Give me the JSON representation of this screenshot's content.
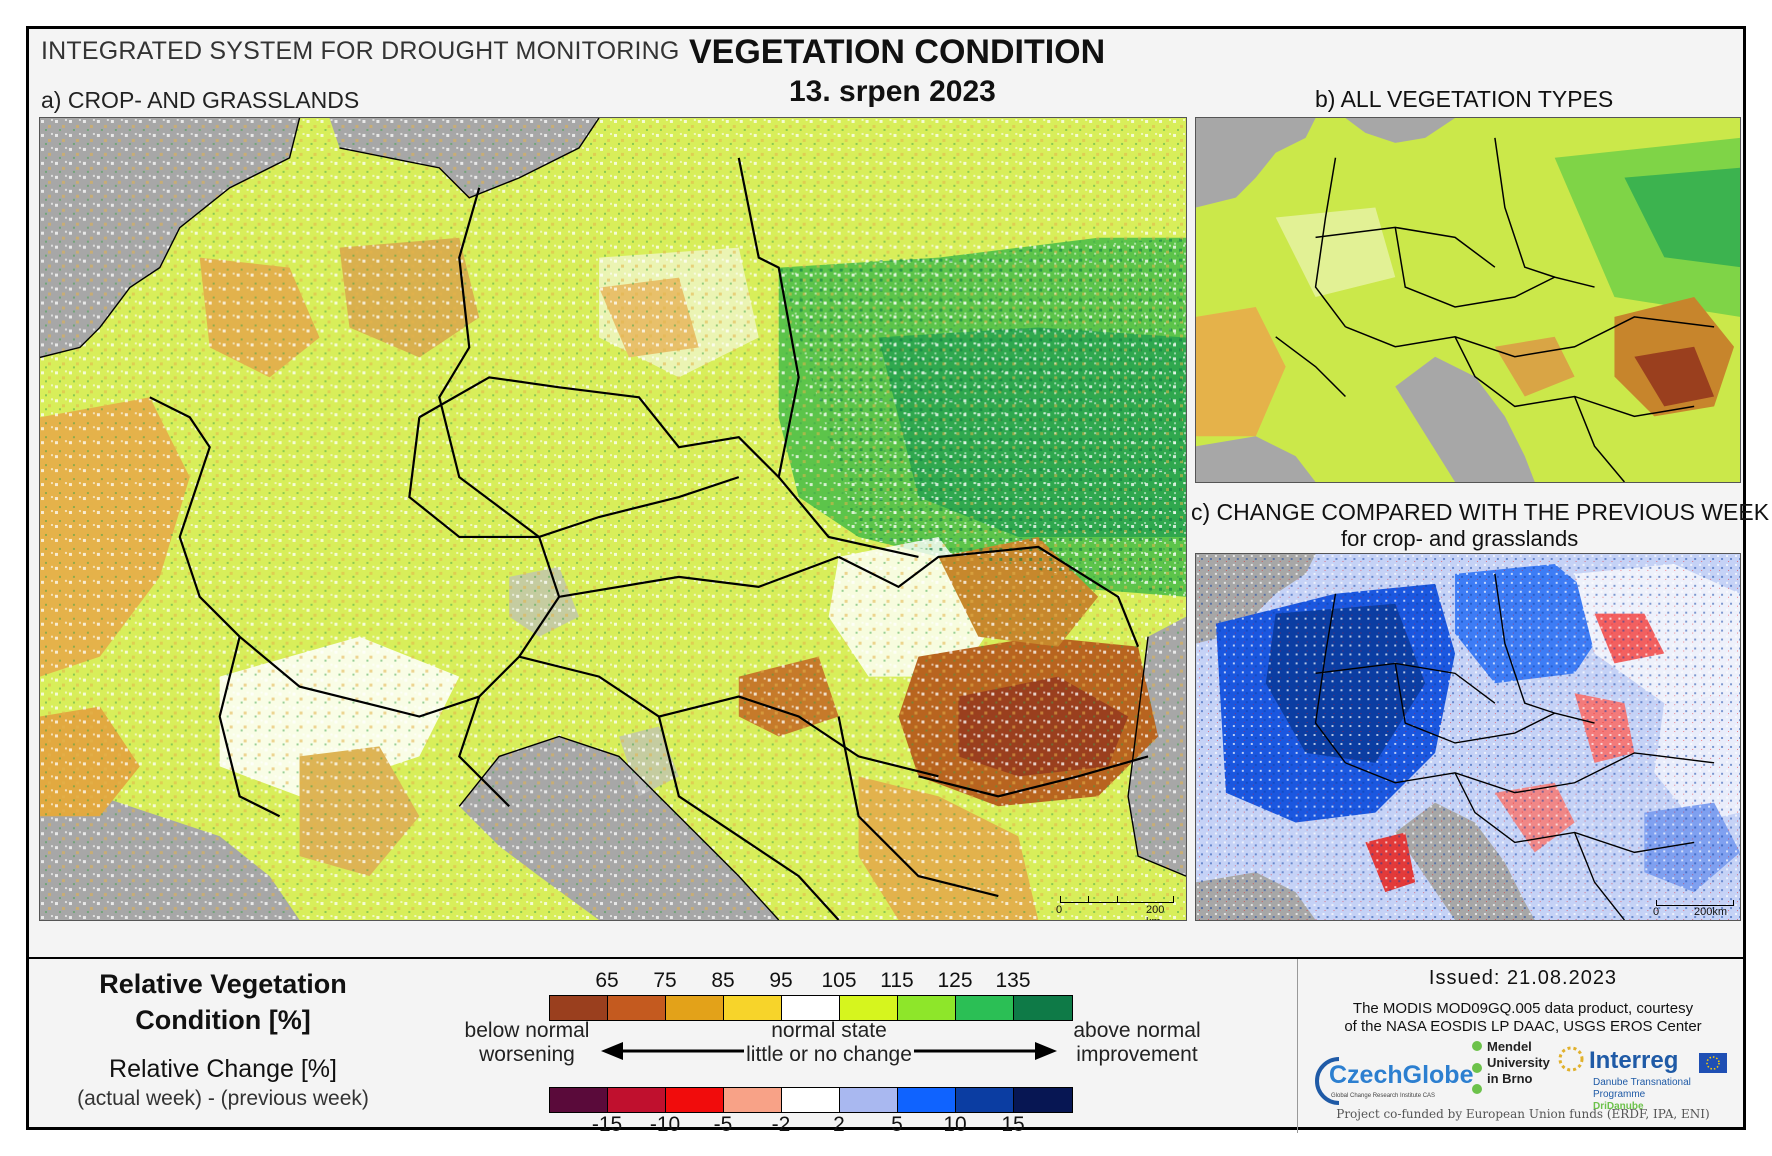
{
  "header": {
    "system_title": "INTEGRATED SYSTEM FOR DROUGHT MONITORING",
    "main_title": "VEGETATION CONDITION",
    "date": "13. srpen 2023"
  },
  "panels": {
    "a_label": "a) CROP- AND GRASSLANDS",
    "b_label": "b) ALL VEGETATION TYPES",
    "c_label": "c) CHANGE COMPARED WITH THE PREVIOUS WEEK",
    "c_sublabel": "for crop- and grasslands"
  },
  "scale_bars": {
    "a": {
      "zero": "0",
      "end": "200 km"
    },
    "c": {
      "zero": "0",
      "end": "200km"
    }
  },
  "legend": {
    "rvc_title_line1": "Relative Vegetation",
    "rvc_title_line2": "Condition [%]",
    "rc_title": "Relative Change [%]",
    "rc_subtitle": "(actual week) - (previous week)",
    "rvc_ticks": [
      "65",
      "75",
      "85",
      "95",
      "105",
      "115",
      "125",
      "135"
    ],
    "rvc_colors": [
      "#9a3f1e",
      "#c45a1f",
      "#e3a219",
      "#f7d42a",
      "#ffffff",
      "#d6f51e",
      "#8ee62a",
      "#2bbf55",
      "#0e7a47"
    ],
    "rc_ticks": [
      "-15",
      "-10",
      "-5",
      "-2",
      "2",
      "5",
      "10",
      "15"
    ],
    "rc_colors": [
      "#5a0a3a",
      "#c0102e",
      "#f10c0c",
      "#f8a287",
      "#ffffff",
      "#a9b8f0",
      "#0f63ff",
      "#0b3da2",
      "#071653"
    ],
    "below_line1": "below normal",
    "below_line2": "worsening",
    "normal_line1": "normal state",
    "normal_line2": "little or no change",
    "above_line1": "above normal",
    "above_line2": "improvement"
  },
  "info": {
    "issued": "Issued: 21.08.2023",
    "courtesy_line1": "The MODIS MOD09GQ.005 data product, courtesy",
    "courtesy_line2": "of the NASA EOSDIS LP DAAC, USGS EROS Center",
    "funded": "Project co-funded by European Union funds (ERDF, IPA, ENI)"
  },
  "logos": {
    "czechglobe": "CzechGlobe",
    "czechglobe_sub": "Global Change Research Institute CAS",
    "mendel_line1": "Mendel",
    "mendel_line2": "University",
    "mendel_line3": "in Brno",
    "interreg": "Interreg",
    "interreg_sub1": "Danube Transnational Programme",
    "interreg_sub2": "DriDanube"
  }
}
